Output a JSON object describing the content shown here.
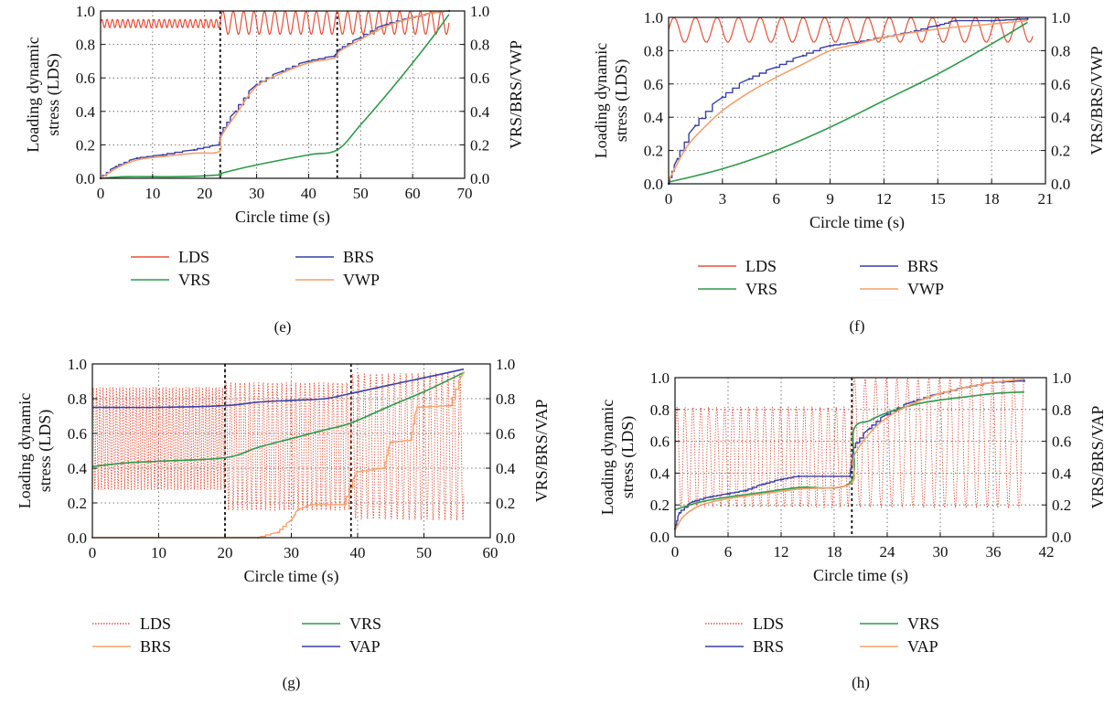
{
  "colors": {
    "LDS": "#e8503a",
    "VRS": "#2e9a4a",
    "BRS": "#3a3fa6",
    "VWP": "#f4a06a",
    "VAP": "#f4a06a",
    "axis": "#111111",
    "grid": "#555555"
  },
  "chart_data": [
    {
      "id": "e",
      "type": "line",
      "panel_label": "(e)",
      "xlabel": "Circle time (s)",
      "ylabel_left": "Loading dynamic stress (LDS)",
      "ylabel_right": "VRS/BRS/VWP",
      "xlim": [
        0,
        70
      ],
      "ylim": [
        0,
        1
      ],
      "ylim_right": [
        0,
        1
      ],
      "xticks": [
        "0",
        "10",
        "20",
        "30",
        "40",
        "50",
        "60",
        "70"
      ],
      "yticks": [
        "0.0",
        "0.2",
        "0.4",
        "0.6",
        "0.8",
        "1.0"
      ],
      "yticks_right": [
        "0.0",
        "0.2",
        "0.4",
        "0.6",
        "0.8",
        "1.0"
      ],
      "grid": true,
      "vlines": [
        23,
        45.5
      ],
      "legend_position": "below",
      "legend": [
        {
          "name": "LDS",
          "key": "LDS"
        },
        {
          "name": "BRS",
          "key": "BRS"
        },
        {
          "name": "VRS",
          "key": "VRS"
        },
        {
          "name": "VWP",
          "key": "VWP"
        }
      ],
      "series": [
        {
          "name": "LDS",
          "key": "LDS",
          "kind": "oscillation",
          "segments": [
            [
              0,
              23,
              0.9,
              0.95,
              1.0
            ],
            [
              23,
              67,
              0.86,
              1.0,
              2.0
            ]
          ]
        },
        {
          "name": "BRS",
          "key": "BRS",
          "stepped": true,
          "points": [
            [
              0,
              0
            ],
            [
              3,
              0.07
            ],
            [
              7,
              0.12
            ],
            [
              12,
              0.14
            ],
            [
              18,
              0.17
            ],
            [
              22.8,
              0.2
            ],
            [
              23.2,
              0.27
            ],
            [
              26,
              0.4
            ],
            [
              30,
              0.56
            ],
            [
              35,
              0.64
            ],
            [
              40,
              0.7
            ],
            [
              45,
              0.73
            ],
            [
              46,
              0.77
            ],
            [
              50,
              0.84
            ],
            [
              55,
              0.92
            ],
            [
              60,
              0.96
            ],
            [
              64,
              0.99
            ],
            [
              67,
              1.0
            ]
          ]
        },
        {
          "name": "VRS",
          "key": "VRS",
          "points": [
            [
              0,
              0
            ],
            [
              5,
              0.01
            ],
            [
              15,
              0.01
            ],
            [
              22.8,
              0.02
            ],
            [
              23.2,
              0.03
            ],
            [
              30,
              0.08
            ],
            [
              40,
              0.14
            ],
            [
              45.5,
              0.17
            ],
            [
              50,
              0.32
            ],
            [
              55,
              0.5
            ],
            [
              60,
              0.69
            ],
            [
              64,
              0.85
            ],
            [
              67,
              0.98
            ]
          ]
        },
        {
          "name": "VWP",
          "key": "VWP",
          "points": [
            [
              0,
              0
            ],
            [
              3,
              0.06
            ],
            [
              7,
              0.11
            ],
            [
              12,
              0.13
            ],
            [
              18,
              0.15
            ],
            [
              22.8,
              0.16
            ],
            [
              23.2,
              0.25
            ],
            [
              26,
              0.38
            ],
            [
              30,
              0.55
            ],
            [
              35,
              0.63
            ],
            [
              40,
              0.69
            ],
            [
              45,
              0.72
            ],
            [
              46,
              0.76
            ],
            [
              50,
              0.83
            ],
            [
              55,
              0.91
            ],
            [
              60,
              0.96
            ],
            [
              64,
              0.99
            ],
            [
              67,
              1.0
            ]
          ]
        }
      ]
    },
    {
      "id": "f",
      "type": "line",
      "panel_label": "(f)",
      "xlabel": "Circle time (s)",
      "ylabel_left": "Loading dynamic stress (LDS)",
      "ylabel_right": "VRS/BRS/VWP",
      "xlim": [
        0,
        21
      ],
      "ylim": [
        0,
        1
      ],
      "ylim_right": [
        0,
        1
      ],
      "xticks": [
        "0",
        "3",
        "6",
        "9",
        "12",
        "15",
        "18",
        "21"
      ],
      "yticks": [
        "0.0",
        "0.2",
        "0.4",
        "0.6",
        "0.8",
        "1.0"
      ],
      "yticks_right": [
        "0.0",
        "0.2",
        "0.4",
        "0.6",
        "0.8",
        "1.0"
      ],
      "grid": true,
      "vlines": [],
      "legend_position": "below",
      "legend": [
        {
          "name": "LDS",
          "key": "LDS"
        },
        {
          "name": "BRS",
          "key": "BRS"
        },
        {
          "name": "VRS",
          "key": "VRS"
        },
        {
          "name": "VWP",
          "key": "VWP"
        }
      ],
      "series": [
        {
          "name": "LDS",
          "key": "LDS",
          "kind": "oscillation",
          "segments": [
            [
              0,
              20.3,
              0.85,
              1.0,
              1.2
            ]
          ]
        },
        {
          "name": "BRS",
          "key": "BRS",
          "stepped": true,
          "points": [
            [
              0,
              0
            ],
            [
              0.5,
              0.15
            ],
            [
              1.5,
              0.35
            ],
            [
              3,
              0.52
            ],
            [
              4.5,
              0.63
            ],
            [
              6,
              0.7
            ],
            [
              7.5,
              0.77
            ],
            [
              9,
              0.83
            ],
            [
              10.5,
              0.85
            ],
            [
              12,
              0.88
            ],
            [
              13.5,
              0.91
            ],
            [
              15,
              0.95
            ],
            [
              16,
              0.98
            ],
            [
              18,
              0.98
            ],
            [
              20,
              0.99
            ]
          ]
        },
        {
          "name": "VRS",
          "key": "VRS",
          "points": [
            [
              0,
              0.01
            ],
            [
              3,
              0.09
            ],
            [
              6,
              0.2
            ],
            [
              9,
              0.34
            ],
            [
              12,
              0.5
            ],
            [
              15,
              0.66
            ],
            [
              18,
              0.84
            ],
            [
              20,
              0.97
            ]
          ]
        },
        {
          "name": "VWP",
          "key": "VWP",
          "points": [
            [
              0,
              0.02
            ],
            [
              1,
              0.22
            ],
            [
              2,
              0.34
            ],
            [
              3,
              0.44
            ],
            [
              4.5,
              0.55
            ],
            [
              6,
              0.64
            ],
            [
              7.5,
              0.72
            ],
            [
              9,
              0.8
            ],
            [
              10.5,
              0.84
            ],
            [
              12,
              0.88
            ],
            [
              15,
              0.93
            ],
            [
              18,
              0.96
            ],
            [
              20,
              0.98
            ]
          ]
        }
      ]
    },
    {
      "id": "g",
      "type": "line",
      "panel_label": "(g)",
      "xlabel": "Circle time (s)",
      "ylabel_left": "Loading dynamic stress (LDS)",
      "ylabel_right": "VRS/BRS/VAP",
      "xlim": [
        0,
        60
      ],
      "ylim": [
        0,
        1
      ],
      "ylim_right": [
        0,
        1
      ],
      "xticks": [
        "0",
        "10",
        "20",
        "30",
        "40",
        "50",
        "60"
      ],
      "yticks": [
        "0.0",
        "0.2",
        "0.4",
        "0.6",
        "0.8",
        "1.0"
      ],
      "yticks_right": [
        "0.0",
        "0.2",
        "0.4",
        "0.6",
        "0.8",
        "1.0"
      ],
      "grid": true,
      "vlines": [
        20,
        39
      ],
      "legend_position": "below",
      "legend": [
        {
          "name": "LDS",
          "key": "LDS"
        },
        {
          "name": "VRS",
          "key": "VRS"
        },
        {
          "name": "BRS",
          "key": "VAP"
        },
        {
          "name": "VAP",
          "key": "BRS"
        }
      ],
      "series": [
        {
          "name": "LDS",
          "key": "LDS",
          "kind": "oscillation",
          "dashed": true,
          "segments": [
            [
              0,
              20,
              0.27,
              0.87,
              0.5
            ],
            [
              20,
              39,
              0.15,
              0.9,
              0.7
            ],
            [
              39,
              56,
              0.1,
              0.95,
              0.9
            ]
          ]
        },
        {
          "name": "VAP",
          "key": "BRS",
          "points": [
            [
              0,
              0.75
            ],
            [
              10,
              0.75
            ],
            [
              20,
              0.76
            ],
            [
              25,
              0.78
            ],
            [
              30,
              0.79
            ],
            [
              35,
              0.8
            ],
            [
              39,
              0.83
            ],
            [
              45,
              0.88
            ],
            [
              50,
              0.92
            ],
            [
              56,
              0.97
            ]
          ]
        },
        {
          "name": "VRS",
          "key": "VRS",
          "points": [
            [
              0,
              0.41
            ],
            [
              5,
              0.43
            ],
            [
              10,
              0.44
            ],
            [
              20,
              0.46
            ],
            [
              25,
              0.52
            ],
            [
              30,
              0.57
            ],
            [
              35,
              0.62
            ],
            [
              39,
              0.66
            ],
            [
              45,
              0.76
            ],
            [
              50,
              0.84
            ],
            [
              56,
              0.95
            ]
          ]
        },
        {
          "name": "BRS",
          "key": "VAP",
          "stepped": true,
          "points": [
            [
              0,
              0
            ],
            [
              25,
              0.0
            ],
            [
              28,
              0.03
            ],
            [
              30,
              0.1
            ],
            [
              31,
              0.16
            ],
            [
              33,
              0.19
            ],
            [
              38,
              0.19
            ],
            [
              40,
              0.38
            ],
            [
              44,
              0.4
            ],
            [
              45,
              0.55
            ],
            [
              48,
              0.56
            ],
            [
              49,
              0.75
            ],
            [
              54,
              0.76
            ],
            [
              56,
              0.95
            ]
          ]
        }
      ]
    },
    {
      "id": "h",
      "type": "line",
      "panel_label": "(h)",
      "xlabel": "Circle time (s)",
      "ylabel_left": "Loading dynamic stress (LDS)",
      "ylabel_right": "VRS/BRS/VAP",
      "xlim": [
        0,
        42
      ],
      "ylim": [
        0,
        1
      ],
      "ylim_right": [
        0,
        1
      ],
      "xticks": [
        "0",
        "6",
        "12",
        "18",
        "24",
        "30",
        "36",
        "42"
      ],
      "yticks": [
        "0.0",
        "0.2",
        "0.4",
        "0.6",
        "0.8",
        "1.0"
      ],
      "yticks_right": [
        "0.0",
        "0.2",
        "0.4",
        "0.6",
        "0.8",
        "1.0"
      ],
      "grid": true,
      "vlines": [
        20
      ],
      "legend_position": "below",
      "legend": [
        {
          "name": "LDS",
          "key": "LDS"
        },
        {
          "name": "VRS",
          "key": "VRS"
        },
        {
          "name": "BRS",
          "key": "BRS"
        },
        {
          "name": "VAP",
          "key": "VAP"
        }
      ],
      "series": [
        {
          "name": "LDS",
          "key": "LDS",
          "kind": "oscillation",
          "dashed": true,
          "segments": [
            [
              0,
              20,
              0.18,
              0.82,
              0.9
            ],
            [
              20,
              39.5,
              0.18,
              1.0,
              1.2
            ]
          ]
        },
        {
          "name": "BRS",
          "key": "BRS",
          "stepped": true,
          "points": [
            [
              0,
              0.05
            ],
            [
              0.5,
              0.15
            ],
            [
              2,
              0.22
            ],
            [
              4,
              0.25
            ],
            [
              6,
              0.27
            ],
            [
              8,
              0.29
            ],
            [
              10,
              0.33
            ],
            [
              12,
              0.36
            ],
            [
              14,
              0.38
            ],
            [
              19.8,
              0.38
            ],
            [
              20.2,
              0.56
            ],
            [
              22,
              0.68
            ],
            [
              24,
              0.77
            ],
            [
              27,
              0.85
            ],
            [
              30,
              0.9
            ],
            [
              33,
              0.94
            ],
            [
              36,
              0.97
            ],
            [
              39.5,
              0.98
            ]
          ]
        },
        {
          "name": "VRS",
          "key": "VRS",
          "points": [
            [
              0,
              0.17
            ],
            [
              3,
              0.22
            ],
            [
              6,
              0.25
            ],
            [
              10,
              0.28
            ],
            [
              14,
              0.31
            ],
            [
              19.8,
              0.34
            ],
            [
              20.2,
              0.67
            ],
            [
              22,
              0.73
            ],
            [
              24,
              0.78
            ],
            [
              27,
              0.83
            ],
            [
              30,
              0.86
            ],
            [
              33,
              0.88
            ],
            [
              36,
              0.9
            ],
            [
              39.5,
              0.91
            ]
          ]
        },
        {
          "name": "VAP",
          "key": "VAP",
          "points": [
            [
              0,
              0.04
            ],
            [
              1,
              0.13
            ],
            [
              3,
              0.2
            ],
            [
              6,
              0.24
            ],
            [
              10,
              0.27
            ],
            [
              14,
              0.3
            ],
            [
              19.8,
              0.33
            ],
            [
              20.2,
              0.5
            ],
            [
              22,
              0.65
            ],
            [
              24,
              0.75
            ],
            [
              27,
              0.84
            ],
            [
              30,
              0.9
            ],
            [
              33,
              0.94
            ],
            [
              36,
              0.97
            ],
            [
              39.5,
              0.99
            ]
          ]
        }
      ]
    }
  ]
}
